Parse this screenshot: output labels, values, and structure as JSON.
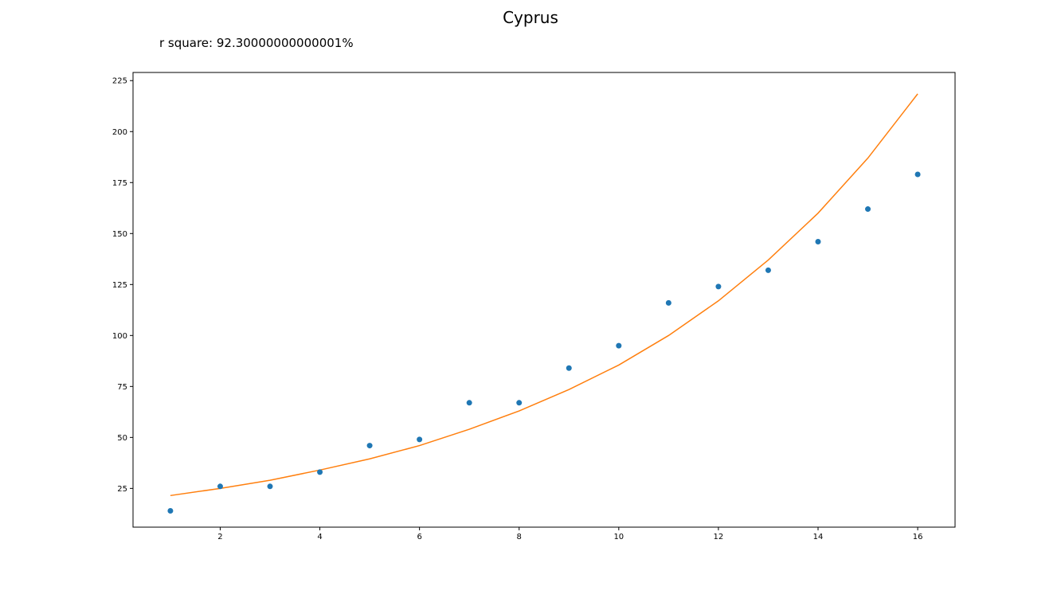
{
  "chart_data": {
    "type": "scatter",
    "title": "Cyprus",
    "annotation": "r square: 92.30000000000001%",
    "xlabel": "",
    "ylabel": "",
    "xlim": [
      0.25,
      16.75
    ],
    "ylim": [
      6,
      229
    ],
    "xticks": [
      2,
      4,
      6,
      8,
      10,
      12,
      14,
      16
    ],
    "yticks": [
      25,
      50,
      75,
      100,
      125,
      150,
      175,
      200,
      225
    ],
    "grid": false,
    "series": [
      {
        "kind": "scatter",
        "color": "#1f77b4",
        "x": [
          1,
          2,
          3,
          4,
          5,
          6,
          7,
          8,
          9,
          10,
          11,
          12,
          13,
          14,
          15,
          16
        ],
        "y": [
          14,
          26,
          26,
          33,
          46,
          49,
          67,
          67,
          84,
          95,
          116,
          124,
          132,
          146,
          162,
          179
        ]
      },
      {
        "kind": "line",
        "color": "#ff7f0e",
        "x": [
          1,
          2,
          3,
          4,
          5,
          6,
          7,
          8,
          9,
          10,
          11,
          12,
          13,
          14,
          15,
          16
        ],
        "y": [
          21.5,
          25,
          29,
          34,
          39.5,
          46,
          54,
          63,
          73.5,
          85.5,
          100,
          117,
          137,
          160,
          187,
          218.5
        ]
      }
    ]
  }
}
